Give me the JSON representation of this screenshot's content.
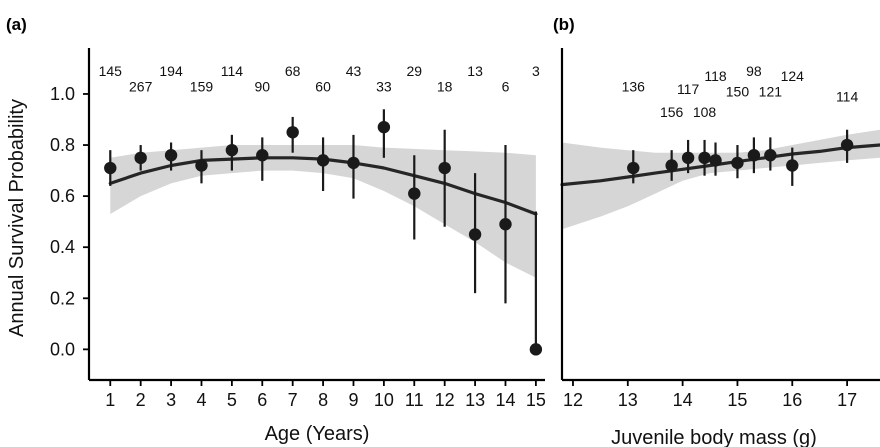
{
  "colors": {
    "band": "#d6d6d6",
    "line": "#262626",
    "point": "#1a1a1a",
    "errorbar": "#1a1a1a",
    "axis": "#000000"
  },
  "chart_data": [
    {
      "type": "scatter",
      "panel_label": "(a)",
      "xlabel": "Age (Years)",
      "ylabel": "Annual Survival Probability",
      "xlim": [
        0.3,
        15.3
      ],
      "ylim": [
        -0.12,
        1.18
      ],
      "x_ticks": [
        1,
        2,
        3,
        4,
        5,
        6,
        7,
        8,
        9,
        10,
        11,
        12,
        13,
        14,
        15
      ],
      "x_tick_labels": [
        "1",
        "2",
        "3",
        "4",
        "5",
        "6",
        "7",
        "8",
        "9",
        "10",
        "11",
        "12",
        "13",
        "14",
        "15"
      ],
      "y_ticks": [
        0.0,
        0.2,
        0.4,
        0.6,
        0.8,
        1.0
      ],
      "y_tick_labels": [
        "0.0",
        "0.2",
        "0.4",
        "0.6",
        "0.8",
        "1.0"
      ],
      "points": [
        {
          "x": 1,
          "y": 0.71,
          "lo": 0.64,
          "hi": 0.78,
          "n": "145",
          "n_y": 1.09
        },
        {
          "x": 2,
          "y": 0.75,
          "lo": 0.7,
          "hi": 0.8,
          "n": "267",
          "n_y": 1.03
        },
        {
          "x": 3,
          "y": 0.76,
          "lo": 0.7,
          "hi": 0.81,
          "n": "194",
          "n_y": 1.09
        },
        {
          "x": 4,
          "y": 0.72,
          "lo": 0.65,
          "hi": 0.78,
          "n": "159",
          "n_y": 1.03
        },
        {
          "x": 5,
          "y": 0.78,
          "lo": 0.7,
          "hi": 0.84,
          "n": "114",
          "n_y": 1.09
        },
        {
          "x": 6,
          "y": 0.76,
          "lo": 0.66,
          "hi": 0.83,
          "n": "90",
          "n_y": 1.03
        },
        {
          "x": 7,
          "y": 0.85,
          "lo": 0.77,
          "hi": 0.91,
          "n": "68",
          "n_y": 1.09
        },
        {
          "x": 8,
          "y": 0.74,
          "lo": 0.62,
          "hi": 0.83,
          "n": "60",
          "n_y": 1.03
        },
        {
          "x": 9,
          "y": 0.73,
          "lo": 0.59,
          "hi": 0.84,
          "n": "43",
          "n_y": 1.09
        },
        {
          "x": 10,
          "y": 0.87,
          "lo": 0.75,
          "hi": 0.94,
          "n": "33",
          "n_y": 1.03
        },
        {
          "x": 11,
          "y": 0.61,
          "lo": 0.43,
          "hi": 0.76,
          "n": "29",
          "n_y": 1.09
        },
        {
          "x": 12,
          "y": 0.71,
          "lo": 0.48,
          "hi": 0.86,
          "n": "18",
          "n_y": 1.03
        },
        {
          "x": 13,
          "y": 0.45,
          "lo": 0.22,
          "hi": 0.69,
          "n": "13",
          "n_y": 1.09
        },
        {
          "x": 14,
          "y": 0.49,
          "lo": 0.18,
          "hi": 0.8,
          "n": "6",
          "n_y": 1.03
        },
        {
          "x": 15,
          "y": 0.0,
          "lo": 0.0,
          "hi": 0.54,
          "n": "3",
          "n_y": 1.09
        }
      ],
      "fit": {
        "x": [
          1,
          2,
          3,
          4,
          5,
          6,
          7,
          8,
          9,
          10,
          11,
          12,
          13,
          14,
          15
        ],
        "y": [
          0.65,
          0.69,
          0.72,
          0.74,
          0.745,
          0.75,
          0.75,
          0.745,
          0.73,
          0.71,
          0.68,
          0.65,
          0.61,
          0.575,
          0.53
        ],
        "lo": [
          0.53,
          0.6,
          0.65,
          0.68,
          0.69,
          0.7,
          0.7,
          0.69,
          0.67,
          0.62,
          0.56,
          0.49,
          0.42,
          0.34,
          0.28
        ],
        "hi": [
          0.75,
          0.77,
          0.78,
          0.79,
          0.8,
          0.8,
          0.8,
          0.8,
          0.8,
          0.79,
          0.785,
          0.78,
          0.775,
          0.77,
          0.76
        ]
      }
    },
    {
      "type": "scatter",
      "panel_label": "(b)",
      "xlabel": "Juvenile body mass (g)",
      "ylabel": "",
      "xlim": [
        11.8,
        17.6
      ],
      "ylim": [
        -0.12,
        1.18
      ],
      "x_ticks": [
        12,
        13,
        14,
        15,
        16,
        17
      ],
      "x_tick_labels": [
        "12",
        "13",
        "14",
        "15",
        "16",
        "17"
      ],
      "y_ticks": [],
      "y_tick_labels": [],
      "points": [
        {
          "x": 13.1,
          "y": 0.71,
          "lo": 0.65,
          "hi": 0.78,
          "n": "136",
          "n_y": 1.03
        },
        {
          "x": 13.8,
          "y": 0.72,
          "lo": 0.66,
          "hi": 0.78,
          "n": "156",
          "n_y": 0.93
        },
        {
          "x": 14.1,
          "y": 0.75,
          "lo": 0.69,
          "hi": 0.82,
          "n": "117",
          "n_y": 1.02
        },
        {
          "x": 14.4,
          "y": 0.75,
          "lo": 0.68,
          "hi": 0.82,
          "n": "108",
          "n_y": 0.93
        },
        {
          "x": 14.6,
          "y": 0.74,
          "lo": 0.68,
          "hi": 0.81,
          "n": "118",
          "n_y": 1.07
        },
        {
          "x": 15.0,
          "y": 0.73,
          "lo": 0.67,
          "hi": 0.8,
          "n": "150",
          "n_y": 1.01
        },
        {
          "x": 15.3,
          "y": 0.76,
          "lo": 0.69,
          "hi": 0.83,
          "n": "98",
          "n_y": 1.09
        },
        {
          "x": 15.6,
          "y": 0.76,
          "lo": 0.7,
          "hi": 0.83,
          "n": "121",
          "n_y": 1.01
        },
        {
          "x": 16.0,
          "y": 0.72,
          "lo": 0.64,
          "hi": 0.79,
          "n": "124",
          "n_y": 1.07
        },
        {
          "x": 17.0,
          "y": 0.8,
          "lo": 0.73,
          "hi": 0.86,
          "n": "114",
          "n_y": 0.99
        }
      ],
      "fit": {
        "x": [
          11.8,
          12.5,
          13.0,
          13.5,
          14.0,
          14.5,
          15.0,
          15.5,
          16.0,
          16.5,
          17.0,
          17.6
        ],
        "y": [
          0.645,
          0.66,
          0.675,
          0.69,
          0.705,
          0.72,
          0.735,
          0.75,
          0.765,
          0.775,
          0.79,
          0.8
        ],
        "lo": [
          0.47,
          0.52,
          0.56,
          0.61,
          0.66,
          0.69,
          0.7,
          0.71,
          0.72,
          0.73,
          0.74,
          0.75
        ],
        "hi": [
          0.81,
          0.79,
          0.78,
          0.77,
          0.77,
          0.77,
          0.77,
          0.78,
          0.8,
          0.82,
          0.84,
          0.86
        ]
      }
    }
  ]
}
